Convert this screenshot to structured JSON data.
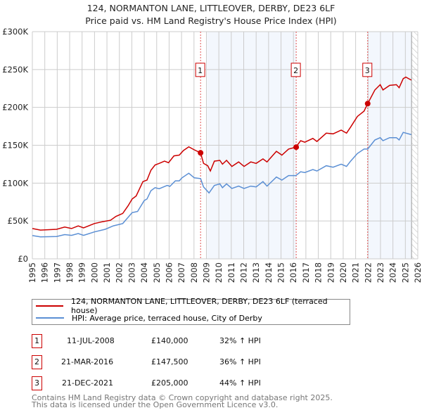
{
  "title_line1": "124, NORMANTON LANE, LITTLEOVER, DERBY, DE23 6LF",
  "title_line2": "Price paid vs. HM Land Registry's House Price Index (HPI)",
  "chart_data": {
    "type": "line",
    "title": "124, NORMANTON LANE, LITTLEOVER, DERBY, DE23 6LF — Price paid vs. HM Land Registry's House Price Index (HPI)",
    "xlim": [
      1995,
      2026
    ],
    "ylim": [
      0,
      300000
    ],
    "grid": true,
    "legend_placement": "below",
    "y_ticks": [
      {
        "v": 0,
        "label": "£0"
      },
      {
        "v": 50000,
        "label": "£50K"
      },
      {
        "v": 100000,
        "label": "£100K"
      },
      {
        "v": 150000,
        "label": "£150K"
      },
      {
        "v": 200000,
        "label": "£200K"
      },
      {
        "v": 250000,
        "label": "£250K"
      },
      {
        "v": 300000,
        "label": "£300K"
      }
    ],
    "x_ticks": [
      "1995",
      "1996",
      "1997",
      "1998",
      "1999",
      "2000",
      "2001",
      "2002",
      "2003",
      "2004",
      "2005",
      "2006",
      "2007",
      "2008",
      "2009",
      "2010",
      "2011",
      "2012",
      "2013",
      "2014",
      "2015",
      "2016",
      "2017",
      "2018",
      "2019",
      "2020",
      "2021",
      "2022",
      "2023",
      "2024",
      "2025",
      "2026"
    ],
    "shaded_ranges": [
      [
        2009.05,
        2016.22
      ],
      [
        2021.97,
        2025.5
      ]
    ],
    "hatched_range": [
      2025.5,
      2026
    ],
    "series": [
      {
        "name": "124, NORMANTON LANE, LITTLEOVER, DERBY, DE23 6LF (terraced house)",
        "color": "#cc0000",
        "x": [
          1995,
          1995.65,
          1996.95,
          1997.6,
          1998.15,
          1998.69,
          1999.12,
          1999.99,
          2000.64,
          2001.29,
          2001.72,
          2002.27,
          2002.7,
          2003.03,
          2003.35,
          2003.89,
          2004.22,
          2004.54,
          2004.87,
          2005.2,
          2005.63,
          2005.95,
          2006.39,
          2006.82,
          2007.15,
          2007.58,
          2008.02,
          2008.53,
          2008.77,
          2009.1,
          2009.32,
          2009.64,
          2010.08,
          2010.29,
          2010.62,
          2011.05,
          2011.59,
          2012.03,
          2012.57,
          2013.0,
          2013.55,
          2013.87,
          2014.63,
          2015.07,
          2015.61,
          2016.19,
          2016.58,
          2016.91,
          2017.56,
          2017.89,
          2018.64,
          2019.19,
          2019.84,
          2020.27,
          2020.6,
          2021.14,
          2021.68,
          2021.97,
          2022.55,
          2022.98,
          2023.2,
          2023.74,
          2024.28,
          2024.5,
          2024.83,
          2025.04,
          2025.48
        ],
        "y": [
          40000,
          38000,
          39000,
          42000,
          40000,
          43500,
          41000,
          46600,
          49000,
          51000,
          56000,
          60000,
          70000,
          79000,
          83000,
          102000,
          104000,
          117000,
          124000,
          126000,
          129000,
          127000,
          136000,
          137000,
          143000,
          148000,
          144000,
          140000,
          126000,
          123000,
          116000,
          129000,
          130000,
          125000,
          130000,
          122000,
          128000,
          122000,
          128000,
          126000,
          132000,
          128000,
          142000,
          137000,
          145000,
          147500,
          156000,
          154000,
          159000,
          155000,
          166000,
          165000,
          170000,
          166000,
          174000,
          188000,
          195000,
          205000,
          223000,
          230000,
          223000,
          229000,
          230000,
          226000,
          238000,
          240000,
          236000
        ]
      },
      {
        "name": "HPI: Average price, terraced house, City of Derby",
        "color": "#5b8fd4",
        "x": [
          1995,
          1995.65,
          1996.95,
          1997.6,
          1998.15,
          1998.69,
          1999.12,
          1999.99,
          2000.86,
          2001.51,
          2002.27,
          2003.03,
          2003.46,
          2004.0,
          2004.22,
          2004.54,
          2004.87,
          2005.2,
          2005.85,
          2006.06,
          2006.5,
          2006.82,
          2007.04,
          2007.58,
          2008.02,
          2008.53,
          2008.77,
          2009.21,
          2009.64,
          2010.08,
          2010.29,
          2010.62,
          2011.05,
          2011.59,
          2012.03,
          2012.57,
          2013.0,
          2013.55,
          2013.87,
          2014.63,
          2015.07,
          2015.61,
          2016.19,
          2016.58,
          2016.91,
          2017.56,
          2017.89,
          2018.64,
          2019.19,
          2019.84,
          2020.27,
          2020.6,
          2021.14,
          2021.68,
          2021.97,
          2022.55,
          2022.98,
          2023.2,
          2023.74,
          2024.28,
          2024.5,
          2024.83,
          2025.48
        ],
        "y": [
          30700,
          29000,
          29500,
          32000,
          31000,
          33400,
          31000,
          35600,
          39000,
          43600,
          46600,
          61000,
          62600,
          77000,
          79000,
          90000,
          94000,
          92600,
          97000,
          95700,
          103000,
          103000,
          107000,
          113000,
          107000,
          106000,
          95000,
          87000,
          97000,
          99000,
          94000,
          99000,
          93000,
          96000,
          93000,
          96000,
          95000,
          102000,
          96000,
          108000,
          104000,
          110000,
          110000,
          115000,
          114000,
          118000,
          116000,
          123000,
          121000,
          125000,
          122000,
          129000,
          139000,
          145000,
          145000,
          157000,
          160000,
          156000,
          160000,
          160000,
          157000,
          167000,
          164000
        ]
      }
    ],
    "sales": [
      {
        "label": "1",
        "date": "11-JUL-2008",
        "x": 2008.53,
        "price": "£140,000",
        "value": 140000,
        "hpi_change": "32% ↑ HPI"
      },
      {
        "label": "2",
        "date": "21-MAR-2016",
        "x": 2016.22,
        "price": "£147,500",
        "value": 147500,
        "hpi_change": "36% ↑ HPI"
      },
      {
        "label": "3",
        "date": "21-DEC-2021",
        "x": 2021.97,
        "price": "£205,000",
        "value": 205000,
        "hpi_change": "44% ↑ HPI"
      }
    ]
  },
  "legend": {
    "red_label": "124, NORMANTON LANE, LITTLEOVER, DERBY, DE23 6LF (terraced house)",
    "blue_label": "HPI: Average price, terraced house, City of Derby"
  },
  "footer": {
    "line1": "Contains HM Land Registry data © Crown copyright and database right 2025.",
    "line2": "This data is licensed under the Open Government Licence v3.0."
  }
}
